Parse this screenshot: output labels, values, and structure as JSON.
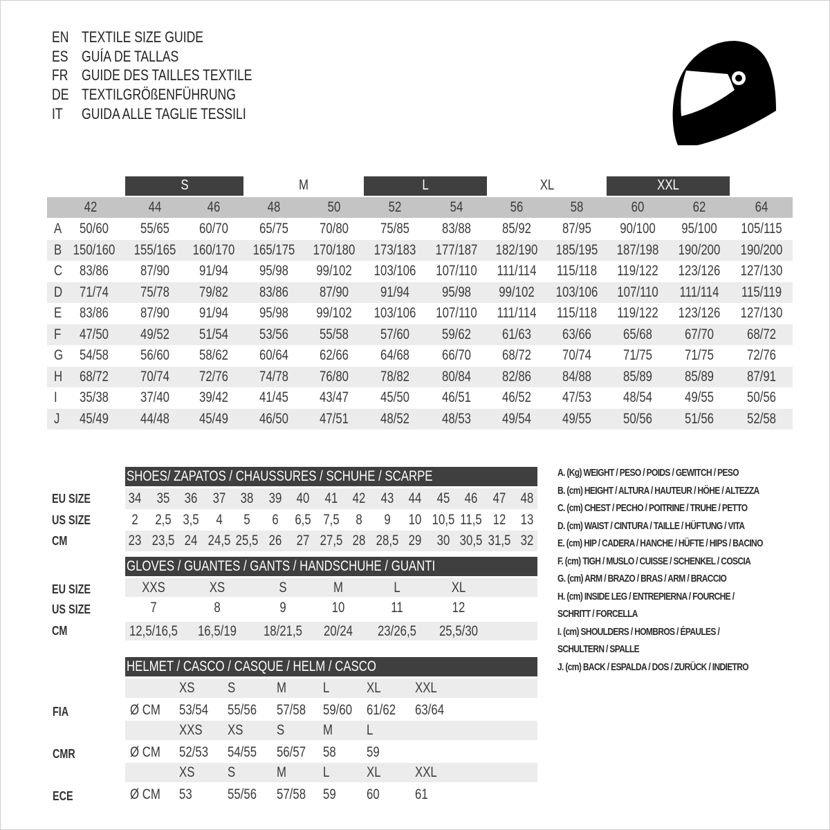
{
  "header": {
    "lines": [
      {
        "code": "EN",
        "text": "TEXTILE SIZE GUIDE"
      },
      {
        "code": "ES",
        "text": "GUÍA DE TALLAS"
      },
      {
        "code": "FR",
        "text": "GUIDE DES TAILLES TEXTILE"
      },
      {
        "code": "DE",
        "text": "TEXTILGRÖßENFÜHRUNG"
      },
      {
        "code": "IT",
        "text": "GUIDA ALLE TAGLIE TESSILI"
      }
    ],
    "logo_icon": "helmet-icon"
  },
  "textile": {
    "bands": [
      "S",
      "M",
      "L",
      "XL",
      "XXL"
    ],
    "sizes": [
      "42",
      "44",
      "46",
      "48",
      "50",
      "52",
      "54",
      "56",
      "58",
      "60",
      "62",
      "64"
    ],
    "rows": [
      {
        "letter": "A",
        "values": [
          "50/60",
          "55/65",
          "60/70",
          "65/75",
          "70/80",
          "75/85",
          "83/88",
          "85/92",
          "87/95",
          "90/100",
          "95/100",
          "105/115"
        ]
      },
      {
        "letter": "B",
        "values": [
          "150/160",
          "155/165",
          "160/170",
          "165/175",
          "170/180",
          "173/183",
          "177/187",
          "182/190",
          "185/195",
          "187/198",
          "190/200",
          "190/200"
        ]
      },
      {
        "letter": "C",
        "values": [
          "83/86",
          "87/90",
          "91/94",
          "95/98",
          "99/102",
          "103/106",
          "107/110",
          "111/114",
          "115/118",
          "119/122",
          "123/126",
          "127/130"
        ]
      },
      {
        "letter": "D",
        "values": [
          "71/74",
          "75/78",
          "79/82",
          "83/86",
          "87/90",
          "91/94",
          "95/98",
          "99/102",
          "103/106",
          "107/110",
          "111/114",
          "115/119"
        ]
      },
      {
        "letter": "E",
        "values": [
          "83/86",
          "87/90",
          "91/94",
          "95/98",
          "99/102",
          "103/106",
          "107/110",
          "111/114",
          "115/118",
          "119/122",
          "123/126",
          "127/130"
        ]
      },
      {
        "letter": "F",
        "values": [
          "47/50",
          "49/52",
          "51/54",
          "53/56",
          "55/58",
          "57/60",
          "59/62",
          "61/63",
          "63/66",
          "65/68",
          "67/70",
          "68/72"
        ]
      },
      {
        "letter": "G",
        "values": [
          "54/58",
          "56/60",
          "58/62",
          "60/64",
          "62/66",
          "64/68",
          "66/70",
          "68/72",
          "70/74",
          "71/75",
          "71/75",
          "72/76"
        ]
      },
      {
        "letter": "H",
        "values": [
          "68/72",
          "70/74",
          "72/76",
          "74/78",
          "76/80",
          "78/82",
          "80/84",
          "82/86",
          "84/88",
          "85/89",
          "85/89",
          "87/91"
        ]
      },
      {
        "letter": "I",
        "values": [
          "35/38",
          "37/40",
          "39/42",
          "41/45",
          "43/47",
          "45/50",
          "46/51",
          "46/52",
          "47/53",
          "48/54",
          "49/55",
          "50/56"
        ]
      },
      {
        "letter": "J",
        "values": [
          "45/49",
          "44/48",
          "45/49",
          "46/50",
          "47/51",
          "48/52",
          "48/53",
          "49/54",
          "49/55",
          "50/56",
          "51/56",
          "52/58"
        ]
      }
    ]
  },
  "shoes": {
    "title": "SHOES/ ZAPATOS / CHAUSSURES / SCHUHE / SCARPE",
    "labels": [
      "EU SIZE",
      "US SIZE",
      "CM"
    ],
    "eu": [
      "34",
      "35",
      "36",
      "37",
      "38",
      "39",
      "40",
      "41",
      "42",
      "43",
      "44",
      "45",
      "46",
      "47",
      "48"
    ],
    "us": [
      "2",
      "2,5",
      "3,5",
      "4",
      "5",
      "6",
      "6,5",
      "7,5",
      "8",
      "9",
      "10",
      "10,5",
      "11,5",
      "12",
      "13"
    ],
    "cm": [
      "23",
      "23,5",
      "24",
      "24,5",
      "25,5",
      "26",
      "27",
      "27,5",
      "28",
      "28,5",
      "29",
      "30",
      "30,5",
      "31,5",
      "32"
    ]
  },
  "gloves": {
    "title": "GLOVES / GUANTES / GANTS / HANDSCHUHE / GUANTI",
    "labels": [
      "EU SIZE",
      "US SIZE",
      "CM"
    ],
    "eu": [
      "XXS",
      "XS",
      "S",
      "M",
      "L",
      "XL"
    ],
    "us": [
      "7",
      "8",
      "9",
      "10",
      "11",
      "12"
    ],
    "cm": [
      "12,5/16,5",
      "16,5/19",
      "18/21,5",
      "20/24",
      "23/26,5",
      "25,5/30"
    ]
  },
  "helmet": {
    "title": "HELMET / CASCO / CASQUE / HELM / CASCO",
    "standards": [
      {
        "name": "FIA",
        "unit": "Ø CM",
        "sizes": [
          "XS",
          "S",
          "M",
          "L",
          "XL",
          "XXL"
        ],
        "values": [
          "53/54",
          "55/56",
          "57/58",
          "59/60",
          "61/62",
          "63/64"
        ]
      },
      {
        "name": "CMR",
        "unit": "Ø CM",
        "sizes": [
          "XXS",
          "XS",
          "S",
          "M",
          "L"
        ],
        "values": [
          "52/53",
          "54/55",
          "56/57",
          "58",
          "59"
        ]
      },
      {
        "name": "ECE",
        "unit": "Ø CM",
        "sizes": [
          "XS",
          "S",
          "M",
          "L",
          "XL",
          "XXL"
        ],
        "values": [
          "53",
          "55/56",
          "57/58",
          "59",
          "60",
          "61"
        ]
      }
    ]
  },
  "legend": {
    "lines": [
      "A. (Kg) WEIGHT / PESO / POIDS / GEWITCH / PESO",
      "B. (cm) HEIGHT / ALTURA / HAUTEUR / HÖHE / ALTEZZA",
      "C. (cm) CHEST / PECHO / POITRINE / TRUHE / PETTO",
      "D. (cm) WAIST / CINTURA / TAILLE / HÜFTUNG / VITA",
      "E. (cm) HIP / CADERA / HANCHE / HÜFTE / HIPS /  BACINO",
      "F.  (cm) TIGH / MUSLO / CUISSE / SCHENKEL / COSCIA",
      "G. (cm) ARM  / BRAZO / BRAS / ARM / BRACCIO",
      "H. (cm) INSIDE LEG / ENTREPIERNA / FOURCHE /",
      "SCHRITT / FORCELLA",
      "I.  (cm) SHOULDERS / HOMBROS / ÉPAULES /",
      "SCHULTERN / SPALLE",
      "J. (cm) BACK / ESPALDA / DOS / ZURÜCK / INDIETRO"
    ]
  },
  "colors": {
    "dark_band": "#3f3f3f",
    "header_gray": "#c4c4c4",
    "row_shade": "#ececec"
  }
}
